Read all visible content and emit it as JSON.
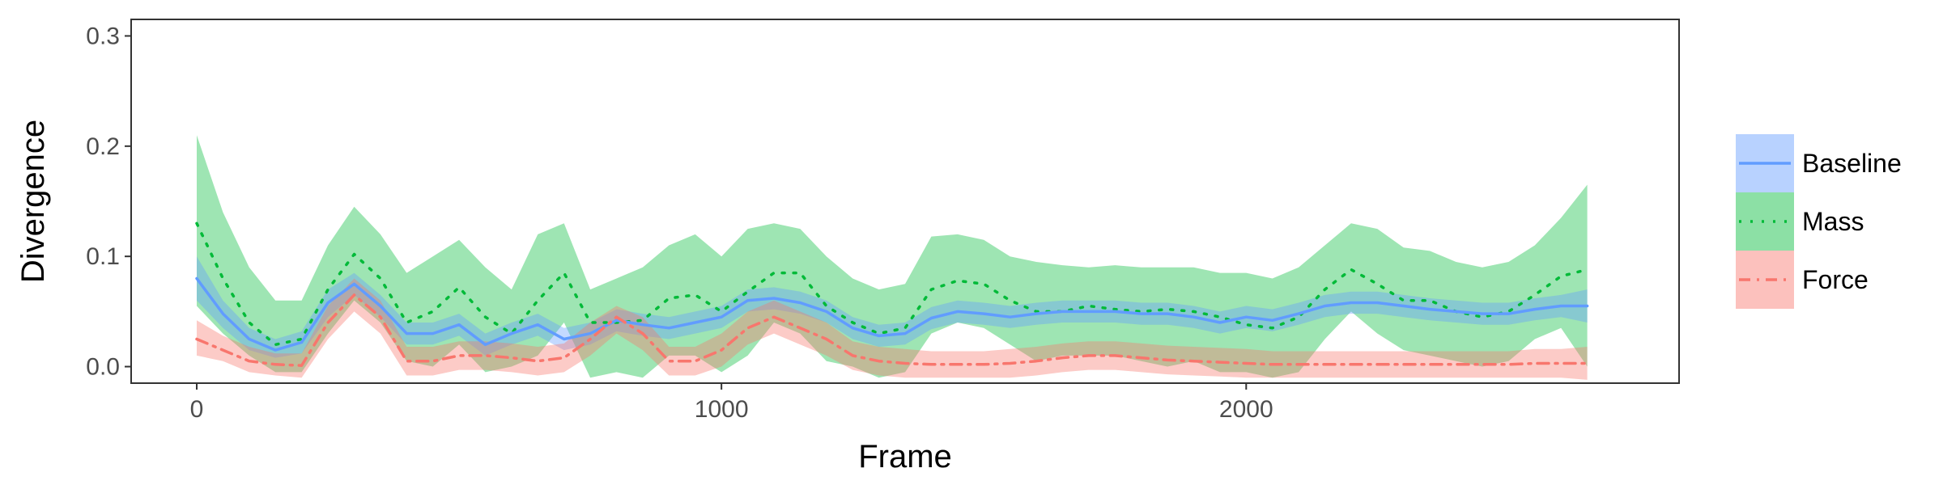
{
  "chart_data": {
    "type": "line",
    "title": "",
    "xlabel": "Frame",
    "ylabel": "Divergence",
    "xlim": [
      -125,
      2825
    ],
    "ylim": [
      -0.015,
      0.315
    ],
    "x_ticks": [
      0,
      1000,
      2000
    ],
    "x_tick_labels": [
      "0",
      "1000",
      "2000"
    ],
    "y_ticks": [
      0.0,
      0.1,
      0.2,
      0.3
    ],
    "y_tick_labels": [
      "0.0",
      "0.1",
      "0.2",
      "0.3"
    ],
    "grid": false,
    "legend_position": "right",
    "series": [
      {
        "name": "Baseline",
        "color": "#619CFF",
        "line_style": "solid",
        "x": [
          0,
          50,
          100,
          150,
          200,
          250,
          300,
          350,
          400,
          450,
          500,
          550,
          600,
          650,
          700,
          750,
          800,
          850,
          900,
          950,
          1000,
          1050,
          1100,
          1150,
          1200,
          1250,
          1300,
          1350,
          1400,
          1450,
          1500,
          1550,
          1600,
          1650,
          1700,
          1750,
          1800,
          1850,
          1900,
          1950,
          2000,
          2050,
          2100,
          2150,
          2200,
          2250,
          2300,
          2350,
          2400,
          2450,
          2500,
          2550,
          2600,
          2650
        ],
        "y": [
          0.08,
          0.048,
          0.025,
          0.015,
          0.022,
          0.058,
          0.075,
          0.055,
          0.03,
          0.03,
          0.038,
          0.02,
          0.03,
          0.038,
          0.025,
          0.03,
          0.042,
          0.038,
          0.035,
          0.04,
          0.045,
          0.06,
          0.062,
          0.058,
          0.05,
          0.035,
          0.028,
          0.03,
          0.044,
          0.05,
          0.048,
          0.045,
          0.048,
          0.05,
          0.05,
          0.05,
          0.048,
          0.048,
          0.045,
          0.04,
          0.045,
          0.042,
          0.048,
          0.055,
          0.058,
          0.058,
          0.055,
          0.052,
          0.05,
          0.048,
          0.048,
          0.052,
          0.055,
          0.055
        ],
        "band_low": [
          0.06,
          0.035,
          0.015,
          0.008,
          0.012,
          0.045,
          0.065,
          0.045,
          0.02,
          0.02,
          0.028,
          0.01,
          0.02,
          0.028,
          0.015,
          0.02,
          0.032,
          0.028,
          0.025,
          0.03,
          0.035,
          0.05,
          0.052,
          0.048,
          0.04,
          0.025,
          0.018,
          0.02,
          0.034,
          0.04,
          0.038,
          0.035,
          0.038,
          0.04,
          0.04,
          0.04,
          0.038,
          0.038,
          0.035,
          0.03,
          0.035,
          0.032,
          0.038,
          0.045,
          0.048,
          0.048,
          0.045,
          0.042,
          0.04,
          0.038,
          0.038,
          0.042,
          0.045,
          0.04
        ],
        "band_high": [
          0.1,
          0.06,
          0.035,
          0.025,
          0.032,
          0.07,
          0.085,
          0.065,
          0.04,
          0.04,
          0.048,
          0.03,
          0.04,
          0.048,
          0.035,
          0.04,
          0.052,
          0.048,
          0.045,
          0.05,
          0.055,
          0.07,
          0.072,
          0.068,
          0.06,
          0.045,
          0.038,
          0.04,
          0.054,
          0.06,
          0.058,
          0.055,
          0.058,
          0.06,
          0.06,
          0.06,
          0.058,
          0.058,
          0.055,
          0.05,
          0.055,
          0.052,
          0.058,
          0.065,
          0.068,
          0.068,
          0.065,
          0.062,
          0.06,
          0.058,
          0.058,
          0.062,
          0.065,
          0.07
        ],
        "band_color": "#619CFF"
      },
      {
        "name": "Mass",
        "color": "#00BA38",
        "line_style": "dotted",
        "x": [
          0,
          50,
          100,
          150,
          200,
          250,
          300,
          350,
          400,
          450,
          500,
          550,
          600,
          650,
          700,
          750,
          800,
          850,
          900,
          950,
          1000,
          1050,
          1100,
          1150,
          1200,
          1250,
          1300,
          1350,
          1400,
          1450,
          1500,
          1550,
          1600,
          1650,
          1700,
          1750,
          1800,
          1850,
          1900,
          1950,
          2000,
          2050,
          2100,
          2150,
          2200,
          2250,
          2300,
          2350,
          2400,
          2450,
          2500,
          2550,
          2600,
          2650
        ],
        "y": [
          0.13,
          0.08,
          0.04,
          0.02,
          0.025,
          0.07,
          0.102,
          0.08,
          0.04,
          0.05,
          0.072,
          0.045,
          0.03,
          0.06,
          0.085,
          0.04,
          0.04,
          0.042,
          0.062,
          0.065,
          0.05,
          0.068,
          0.085,
          0.085,
          0.055,
          0.04,
          0.03,
          0.035,
          0.07,
          0.078,
          0.075,
          0.06,
          0.05,
          0.05,
          0.055,
          0.052,
          0.05,
          0.052,
          0.05,
          0.045,
          0.038,
          0.035,
          0.045,
          0.07,
          0.088,
          0.075,
          0.06,
          0.06,
          0.05,
          0.045,
          0.05,
          0.065,
          0.082,
          0.088
        ],
        "band_low": [
          0.055,
          0.03,
          0.01,
          -0.005,
          -0.005,
          0.03,
          0.06,
          0.04,
          0.005,
          0.0,
          0.02,
          -0.005,
          0.0,
          0.01,
          0.04,
          -0.01,
          -0.005,
          -0.01,
          0.01,
          0.01,
          -0.005,
          0.01,
          0.04,
          0.03,
          0.005,
          0.0,
          -0.01,
          -0.005,
          0.03,
          0.04,
          0.035,
          0.02,
          0.005,
          0.01,
          0.01,
          0.01,
          0.005,
          0.0,
          0.005,
          -0.005,
          -0.005,
          -0.01,
          -0.005,
          0.025,
          0.05,
          0.03,
          0.015,
          0.01,
          0.005,
          0.0,
          0.005,
          0.025,
          0.035,
          0.0
        ],
        "band_high": [
          0.21,
          0.14,
          0.09,
          0.06,
          0.06,
          0.11,
          0.145,
          0.12,
          0.085,
          0.1,
          0.115,
          0.09,
          0.07,
          0.12,
          0.13,
          0.07,
          0.08,
          0.09,
          0.11,
          0.12,
          0.1,
          0.125,
          0.13,
          0.125,
          0.1,
          0.08,
          0.07,
          0.075,
          0.118,
          0.12,
          0.115,
          0.1,
          0.095,
          0.092,
          0.09,
          0.092,
          0.09,
          0.09,
          0.09,
          0.085,
          0.085,
          0.08,
          0.09,
          0.11,
          0.13,
          0.125,
          0.108,
          0.105,
          0.095,
          0.09,
          0.095,
          0.11,
          0.135,
          0.165
        ],
        "band_color": "#00BA38"
      },
      {
        "name": "Force",
        "color": "#F8766D",
        "line_style": "dashdot",
        "x": [
          0,
          50,
          100,
          150,
          200,
          250,
          300,
          350,
          400,
          450,
          500,
          550,
          600,
          650,
          700,
          750,
          800,
          850,
          900,
          950,
          1000,
          1050,
          1100,
          1150,
          1200,
          1250,
          1300,
          1350,
          1400,
          1450,
          1500,
          1550,
          1600,
          1650,
          1700,
          1750,
          1800,
          1850,
          1900,
          1950,
          2000,
          2050,
          2100,
          2150,
          2200,
          2250,
          2300,
          2350,
          2400,
          2450,
          2500,
          2550,
          2600,
          2650
        ],
        "y": [
          0.025,
          0.015,
          0.005,
          0.002,
          0.001,
          0.04,
          0.065,
          0.045,
          0.005,
          0.005,
          0.01,
          0.01,
          0.008,
          0.005,
          0.008,
          0.025,
          0.045,
          0.03,
          0.005,
          0.005,
          0.015,
          0.035,
          0.045,
          0.035,
          0.025,
          0.01,
          0.005,
          0.003,
          0.002,
          0.002,
          0.002,
          0.003,
          0.005,
          0.008,
          0.01,
          0.01,
          0.008,
          0.006,
          0.005,
          0.004,
          0.003,
          0.002,
          0.002,
          0.002,
          0.002,
          0.002,
          0.002,
          0.002,
          0.002,
          0.002,
          0.002,
          0.003,
          0.003,
          0.003
        ],
        "band_low": [
          0.01,
          0.005,
          -0.005,
          -0.008,
          -0.01,
          0.025,
          0.05,
          0.03,
          -0.008,
          -0.008,
          -0.003,
          -0.003,
          -0.005,
          -0.008,
          -0.005,
          0.01,
          0.03,
          0.015,
          -0.008,
          -0.008,
          0.0,
          0.02,
          0.03,
          0.02,
          0.01,
          -0.003,
          -0.008,
          -0.01,
          -0.01,
          -0.01,
          -0.01,
          -0.01,
          -0.008,
          -0.005,
          -0.003,
          -0.003,
          -0.005,
          -0.007,
          -0.008,
          -0.009,
          -0.01,
          -0.01,
          -0.01,
          -0.01,
          -0.01,
          -0.01,
          -0.01,
          -0.01,
          -0.01,
          -0.01,
          -0.01,
          -0.01,
          -0.01,
          -0.012
        ],
        "band_high": [
          0.042,
          0.028,
          0.018,
          0.012,
          0.012,
          0.055,
          0.08,
          0.06,
          0.018,
          0.018,
          0.023,
          0.023,
          0.021,
          0.018,
          0.021,
          0.04,
          0.055,
          0.045,
          0.018,
          0.018,
          0.03,
          0.05,
          0.06,
          0.05,
          0.04,
          0.023,
          0.018,
          0.016,
          0.014,
          0.014,
          0.014,
          0.016,
          0.018,
          0.021,
          0.023,
          0.023,
          0.021,
          0.019,
          0.018,
          0.017,
          0.016,
          0.014,
          0.014,
          0.014,
          0.014,
          0.014,
          0.014,
          0.014,
          0.014,
          0.014,
          0.014,
          0.016,
          0.016,
          0.018
        ],
        "band_color": "#F8766D"
      }
    ]
  }
}
